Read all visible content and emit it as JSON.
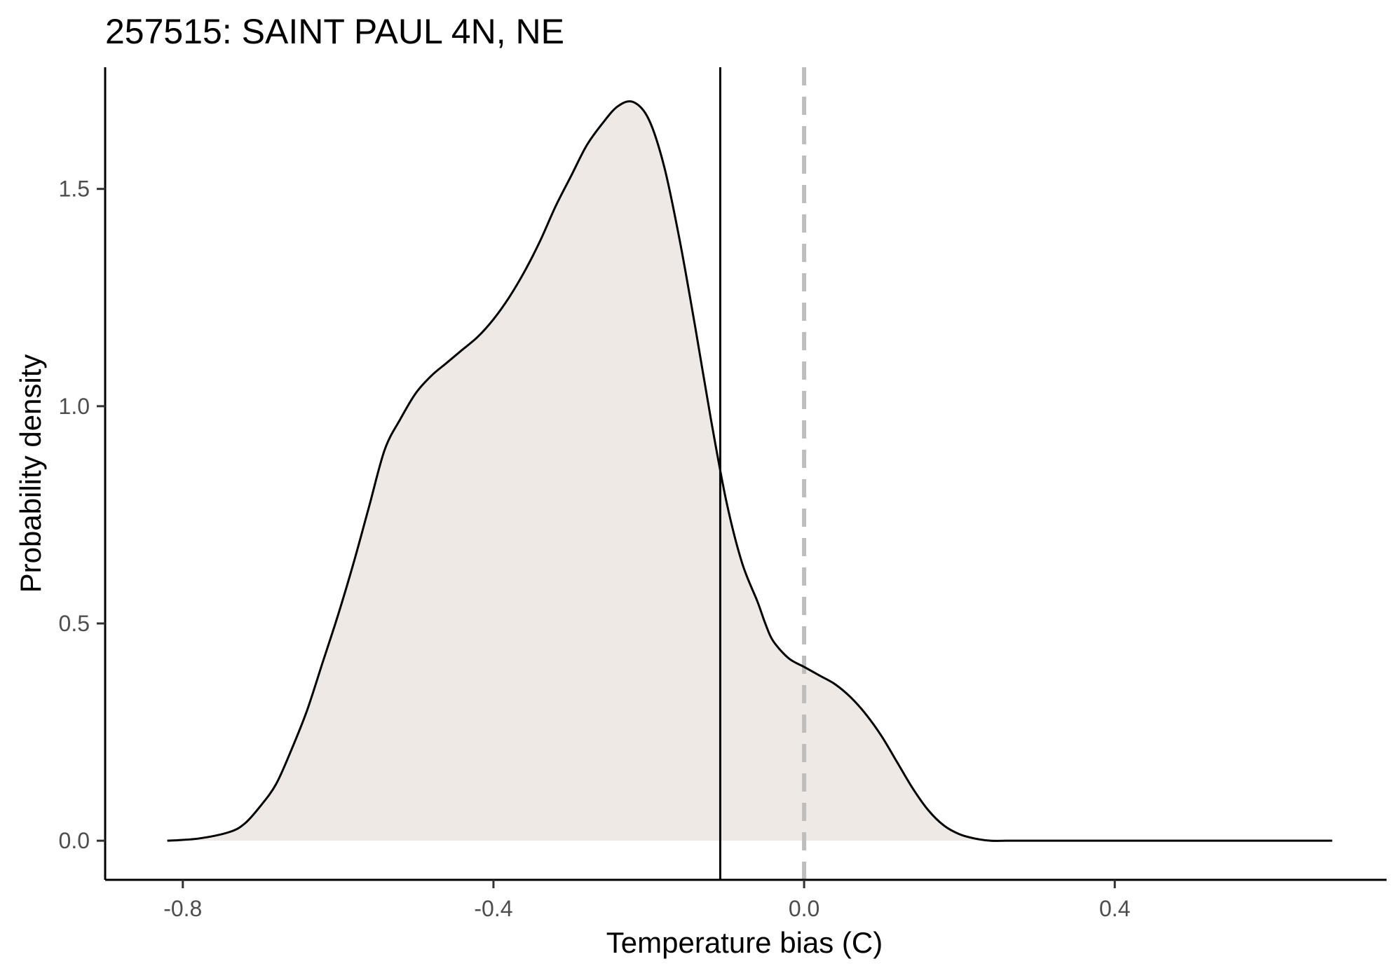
{
  "chart_data": {
    "type": "area",
    "title": "257515: SAINT PAUL 4N, NE",
    "xlabel": "Temperature bias (C)",
    "ylabel": "Probability density",
    "xlim": [
      -0.9,
      0.75
    ],
    "ylim": [
      -0.09,
      1.78
    ],
    "x_ticks": [
      -0.8,
      -0.4,
      0.0,
      0.4
    ],
    "x_tick_labels": [
      "-0.8",
      "-0.4",
      "0.0",
      "0.4"
    ],
    "y_ticks": [
      0.0,
      0.5,
      1.0,
      1.5
    ],
    "y_tick_labels": [
      "0.0",
      "0.5",
      "1.0",
      "1.5"
    ],
    "grid": false,
    "fill_color": "#efe9e6",
    "line_color": "#000000",
    "series": [
      {
        "x": [
          -0.82,
          -0.78,
          -0.74,
          -0.72,
          -0.7,
          -0.68,
          -0.66,
          -0.64,
          -0.62,
          -0.6,
          -0.58,
          -0.56,
          -0.54,
          -0.52,
          -0.5,
          -0.48,
          -0.46,
          -0.44,
          -0.42,
          -0.4,
          -0.38,
          -0.36,
          -0.34,
          -0.32,
          -0.3,
          -0.28,
          -0.26,
          -0.24,
          -0.22,
          -0.2,
          -0.18,
          -0.16,
          -0.14,
          -0.12,
          -0.1,
          -0.08,
          -0.06,
          -0.05,
          -0.04,
          -0.02,
          0.0,
          0.02,
          0.04,
          0.06,
          0.08,
          0.1,
          0.12,
          0.14,
          0.16,
          0.18,
          0.2,
          0.22,
          0.24,
          0.26,
          0.28,
          0.3,
          0.32,
          0.34,
          0.36,
          0.38,
          0.4,
          0.42,
          0.44,
          0.46,
          0.48,
          0.5,
          0.52,
          0.54,
          0.56,
          0.58,
          0.6,
          0.64,
          0.68
        ],
        "y": [
          0.0,
          0.005,
          0.02,
          0.04,
          0.08,
          0.13,
          0.21,
          0.3,
          0.41,
          0.52,
          0.64,
          0.77,
          0.9,
          1.0,
          1.08,
          1.14,
          1.18,
          1.21,
          1.24,
          1.28,
          1.32,
          1.37,
          1.42,
          1.48,
          1.54,
          1.6,
          1.66,
          1.69,
          1.7,
          1.66,
          1.55,
          1.38,
          1.18,
          0.96,
          0.77,
          0.62,
          0.52,
          0.47,
          0.43,
          0.41,
          0.4,
          0.39,
          0.38,
          0.36,
          0.32,
          0.26,
          0.19,
          0.12,
          0.07,
          0.03,
          0.01,
          0.0,
          0.0,
          0.0,
          0.0,
          0.0,
          0.0,
          0.0,
          0.0,
          0.0,
          0.0,
          0.0,
          0.0,
          0.0,
          0.0,
          0.0,
          0.0,
          0.0,
          0.0,
          0.0,
          0.0,
          0.0,
          0.0
        ]
      }
    ],
    "density_points": {
      "x": [
        -0.82,
        -0.78,
        -0.74,
        -0.72,
        -0.7,
        -0.68,
        -0.66,
        -0.64,
        -0.62,
        -0.6,
        -0.58,
        -0.56,
        -0.54,
        -0.52,
        -0.5,
        -0.48,
        -0.46,
        -0.44,
        -0.42,
        -0.4,
        -0.38,
        -0.36,
        -0.34,
        -0.32,
        -0.3,
        -0.28,
        -0.26,
        -0.24,
        -0.22,
        -0.2,
        -0.18,
        -0.16,
        -0.14,
        -0.12,
        -0.1,
        -0.08,
        -0.06,
        -0.05,
        -0.04,
        -0.02,
        0.0,
        0.02,
        0.04,
        0.06,
        0.08,
        0.1,
        0.12,
        0.14,
        0.16,
        0.18,
        0.2,
        0.22,
        0.24,
        0.26,
        0.28,
        0.3,
        0.32,
        0.34,
        0.36,
        0.38,
        0.4,
        0.42,
        0.44,
        0.46,
        0.48,
        0.5,
        0.52,
        0.54,
        0.56,
        0.58,
        0.6,
        0.64,
        0.68
      ],
      "y": [
        0.0,
        0.005,
        0.02,
        0.04,
        0.08,
        0.13,
        0.21,
        0.3,
        0.41,
        0.52,
        0.64,
        0.77,
        0.9,
        0.97,
        1.03,
        1.07,
        1.1,
        1.13,
        1.16,
        1.2,
        1.25,
        1.31,
        1.38,
        1.46,
        1.53,
        1.6,
        1.65,
        1.69,
        1.7,
        1.66,
        1.55,
        1.38,
        1.18,
        0.97,
        0.78,
        0.64,
        0.55,
        0.5,
        0.46,
        0.42,
        0.4,
        0.38,
        0.36,
        0.33,
        0.29,
        0.24,
        0.18,
        0.12,
        0.07,
        0.035,
        0.015,
        0.005,
        0.0,
        0.0,
        0.0,
        0.0,
        0.0,
        0.0,
        0.0,
        0.0,
        0.0,
        0.0,
        0.0,
        0.0,
        0.0,
        0.0,
        0.0,
        0.0,
        0.0,
        0.0,
        0.0,
        0.0,
        0.0
      ]
    },
    "mean_line": {
      "x": -0.108,
      "style": "solid",
      "color": "#000000"
    },
    "zero_line": {
      "x": 0.0,
      "style": "dashed",
      "color": "#bebebe"
    }
  }
}
